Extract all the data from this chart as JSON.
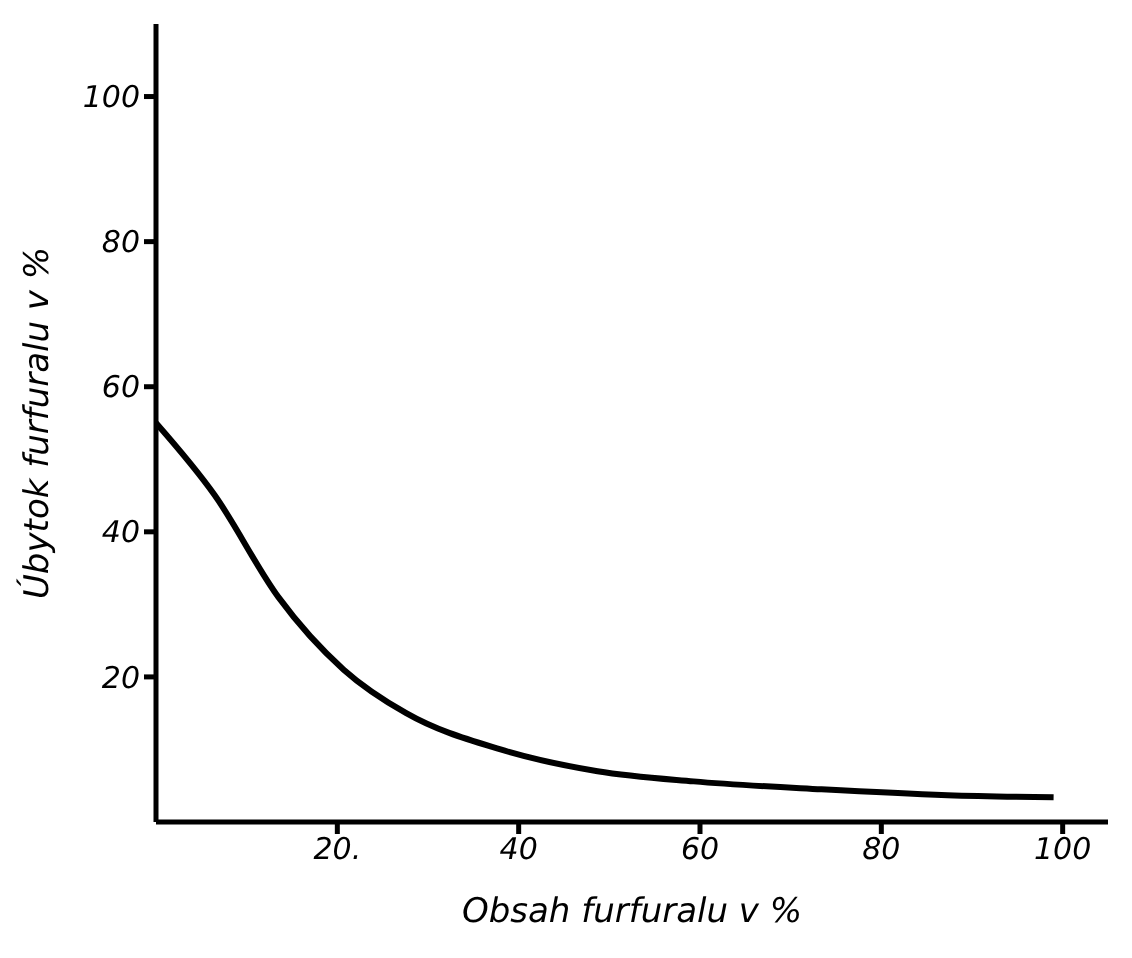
{
  "chart_data": {
    "type": "line",
    "xlabel": "Obsah furfuralu v %",
    "ylabel": "Úbytok furfuralu v %",
    "x": [
      0,
      6.5,
      13.5,
      20.7,
      27.6,
      38,
      48.7,
      59.3,
      73.4,
      87.3,
      99
    ],
    "series": [
      {
        "color": "#000000",
        "values": [
          55,
          45,
          31,
          21,
          15,
          10,
          7,
          5.6,
          4.5,
          3.7,
          3.4
        ]
      }
    ],
    "xlim": [
      0,
      105
    ],
    "xticks": [
      {
        "value": 20,
        "label": "20."
      },
      40,
      60,
      80,
      100
    ],
    "ylim": [
      0,
      110
    ],
    "yticks": [
      20,
      40,
      60,
      80,
      100
    ],
    "grid": false,
    "legend": false,
    "marker": "none",
    "line_style": "solid"
  }
}
